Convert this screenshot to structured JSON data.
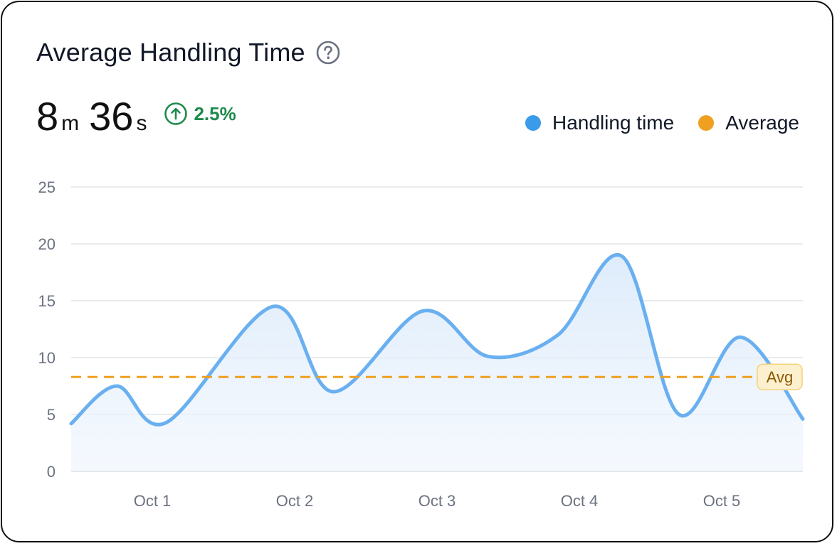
{
  "header": {
    "title": "Average Handling Time",
    "help_icon": "question-circle-icon"
  },
  "kpi": {
    "minutes": "8",
    "minutes_unit": "m",
    "seconds": "36",
    "seconds_unit": "s",
    "trend_icon": "arrow-up-circle-icon",
    "trend_value": "2.5%",
    "trend_color": "#1f8a4c"
  },
  "legend": [
    {
      "label": "Handling time",
      "color": "#3b9be8"
    },
    {
      "label": "Average",
      "color": "#f0a020"
    }
  ],
  "chart_data": {
    "type": "area",
    "title": "Average Handling Time",
    "xlabel": "",
    "ylabel": "",
    "ylim": [
      0,
      25
    ],
    "yticks": [
      "0",
      "5",
      "10",
      "15",
      "20",
      "25"
    ],
    "categories": [
      "Oct 1",
      "Oct 2",
      "Oct 3",
      "Oct 4",
      "Oct 5"
    ],
    "series": [
      {
        "name": "Handling time",
        "color": "#6ab0f0",
        "x": [
          0.1,
          0.75,
          1.1,
          1.85,
          2.27,
          2.9,
          3.36,
          3.85,
          4.3,
          4.7,
          5.13,
          5.67
        ],
        "values": [
          4.2,
          7.5,
          4.3,
          14.5,
          7.0,
          14.1,
          10.1,
          12.0,
          18.9,
          5.0,
          11.8,
          4.6
        ]
      }
    ],
    "average": {
      "name": "Average",
      "value": 8.3,
      "label": "Avg",
      "color": "#f0a020"
    },
    "grid": true,
    "legend_position": "top-right"
  }
}
